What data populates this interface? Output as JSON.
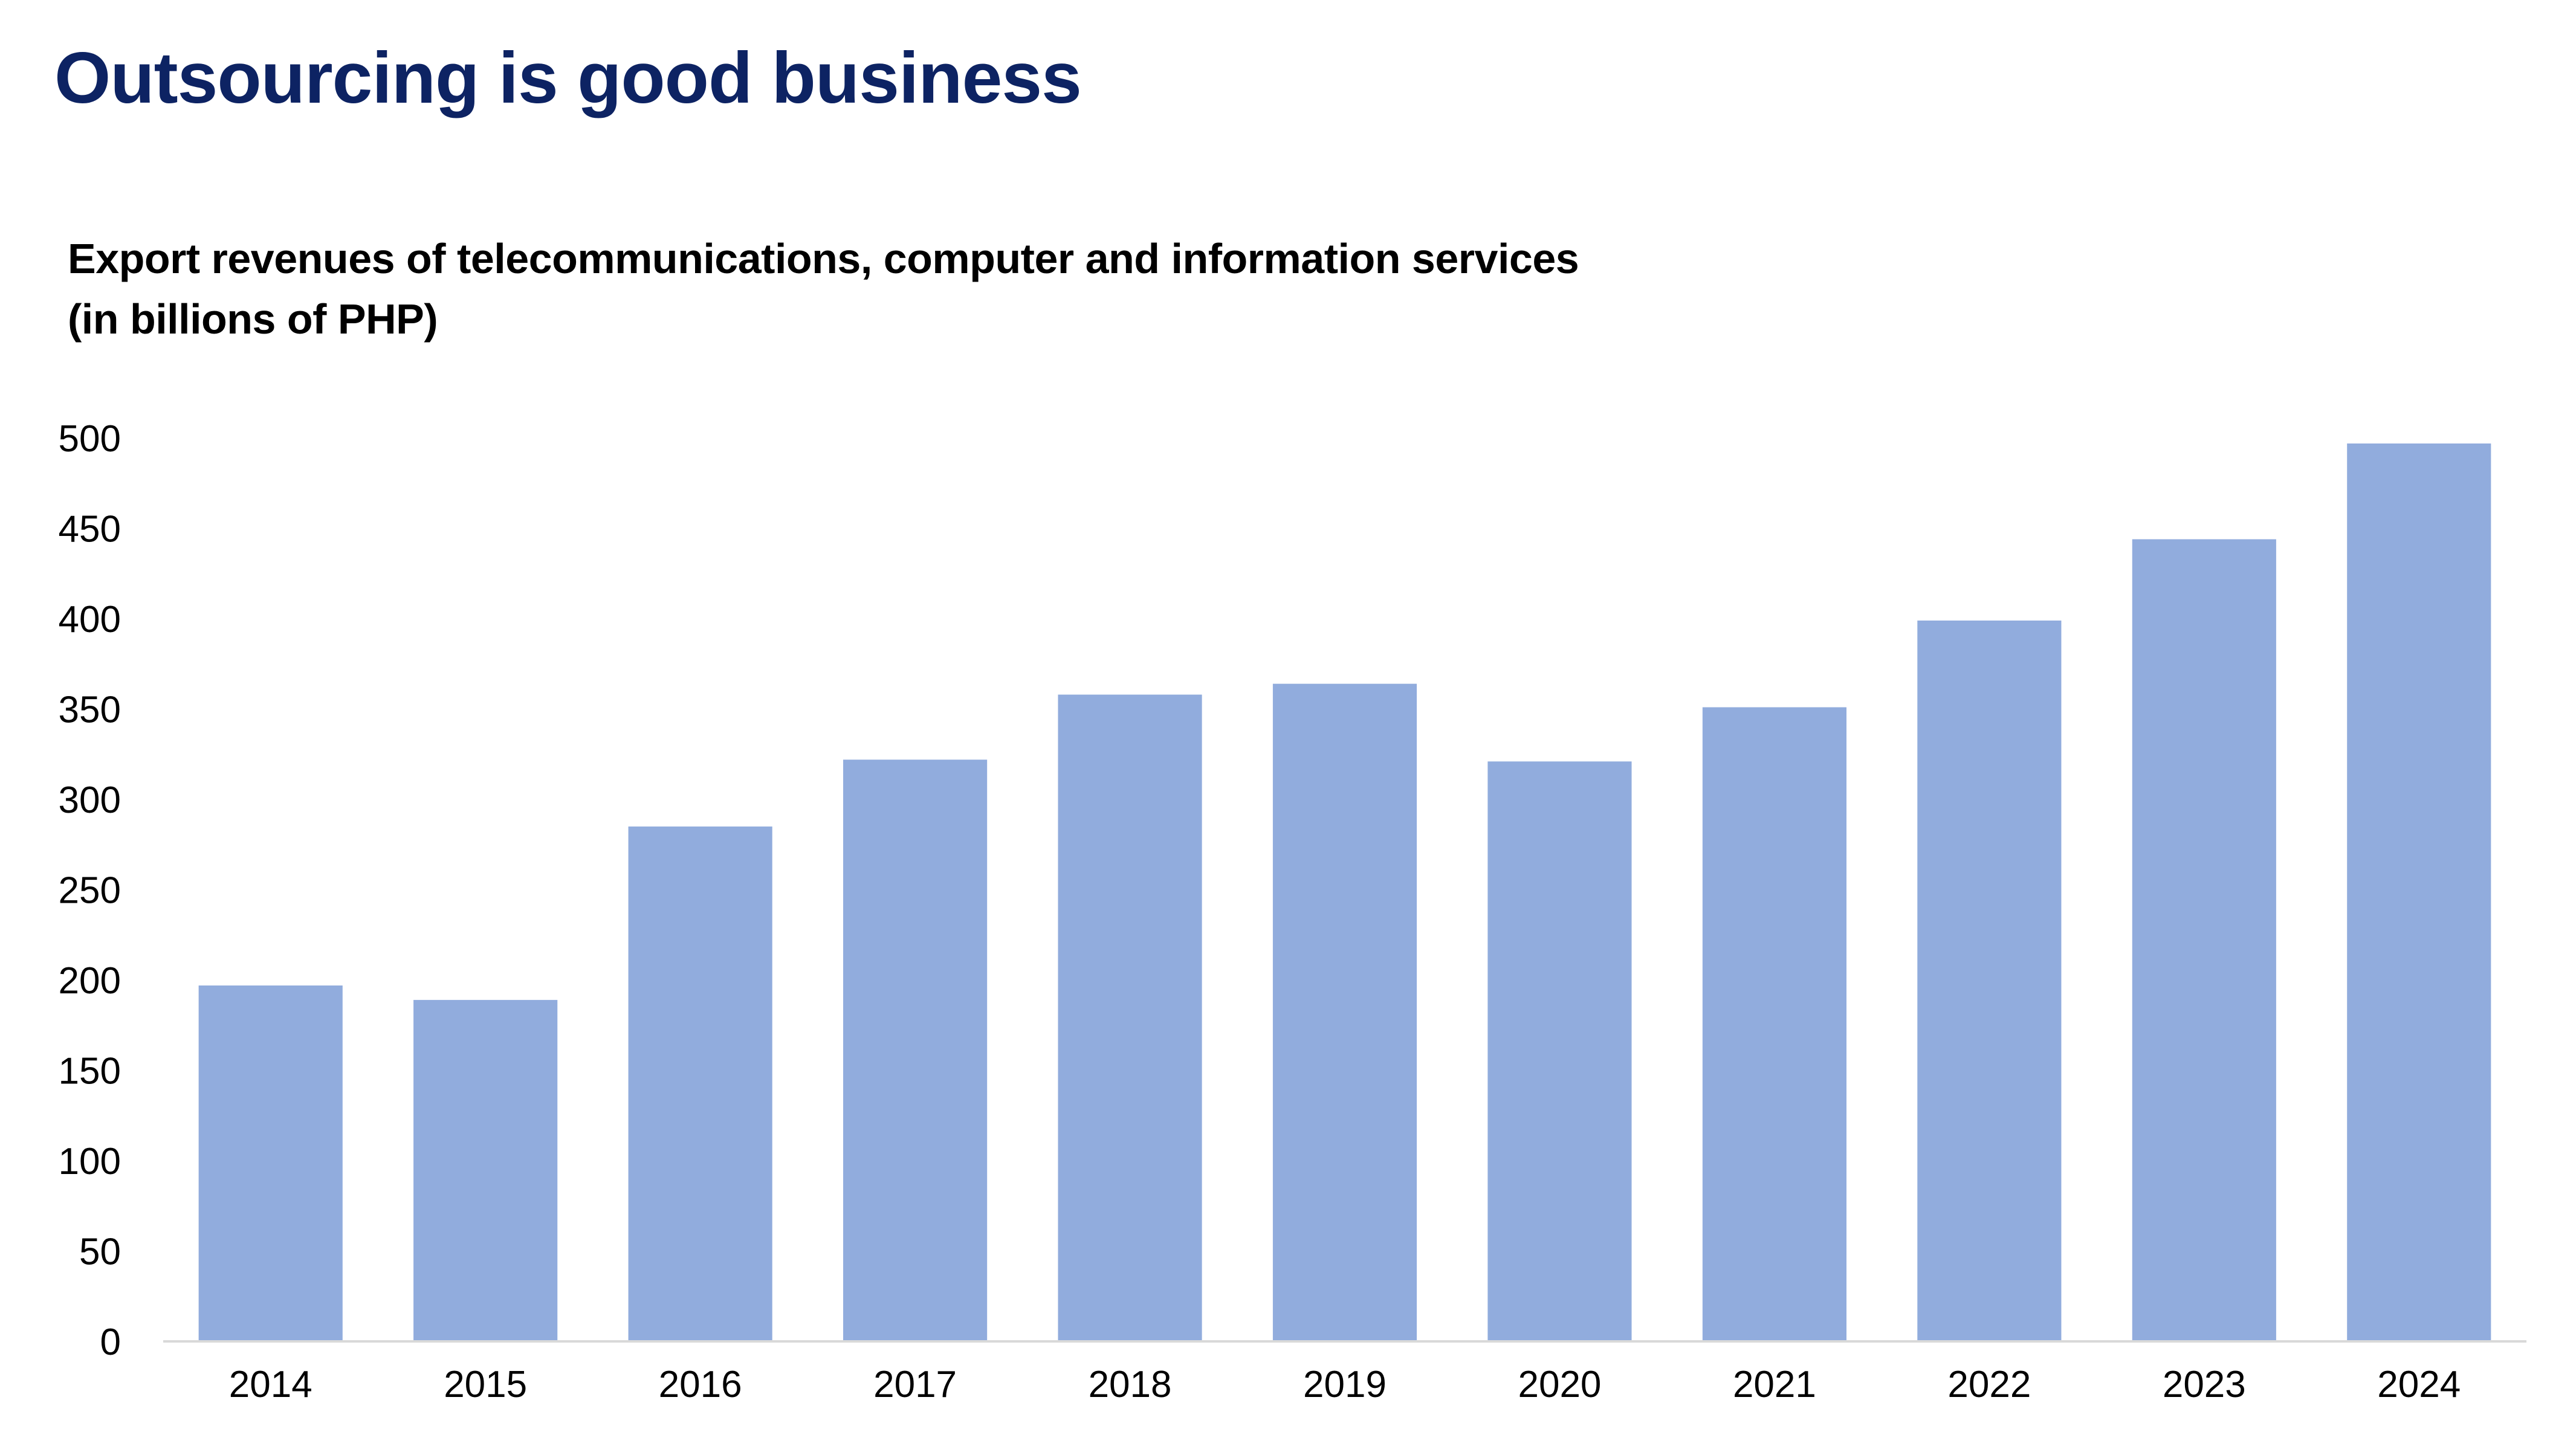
{
  "page": {
    "title": "Outsourcing is good business"
  },
  "chart_data": {
    "type": "bar",
    "title": "Export revenues of telecommunications, computer and information services",
    "subtitle": "(in billions of PHP)",
    "xlabel": "",
    "ylabel": "",
    "categories": [
      "2014",
      "2015",
      "2016",
      "2017",
      "2018",
      "2019",
      "2020",
      "2021",
      "2022",
      "2023",
      "2024"
    ],
    "values": [
      197,
      189,
      285,
      322,
      358,
      364,
      321,
      351,
      399,
      444,
      497
    ],
    "ylim": [
      0,
      500
    ],
    "yticks": [
      0,
      50,
      100,
      150,
      200,
      250,
      300,
      350,
      400,
      450,
      500
    ],
    "grid": false,
    "legend": "none",
    "colors": {
      "bar": "#91acdd",
      "axis": "#d9d9d9",
      "title": "#0d2363"
    }
  }
}
